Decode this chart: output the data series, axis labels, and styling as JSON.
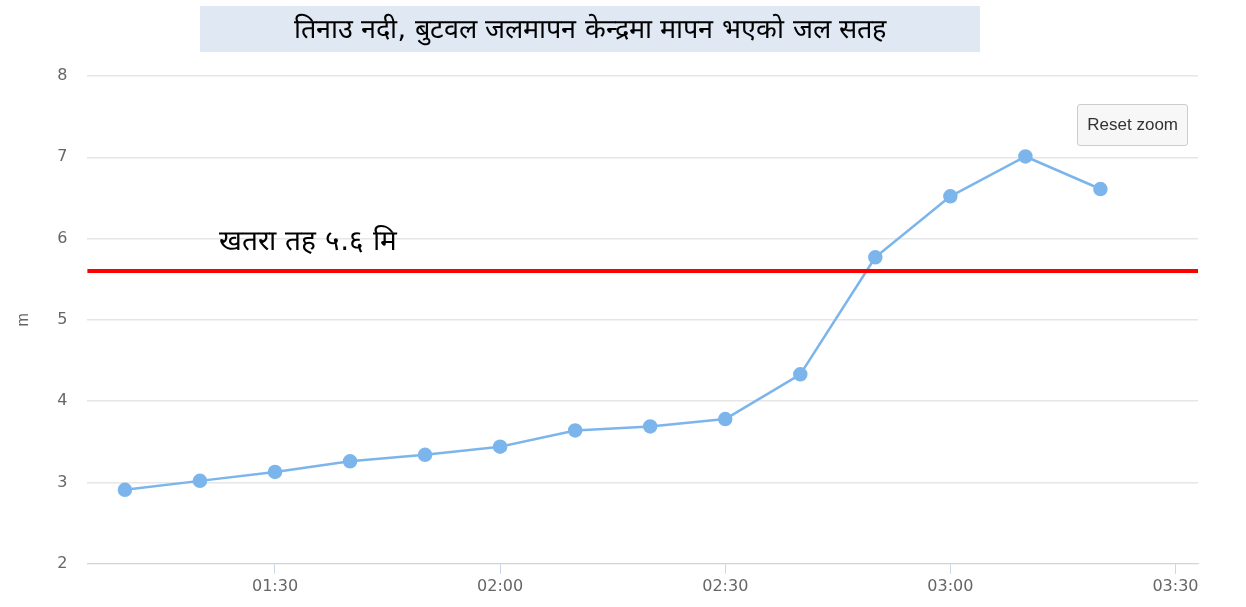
{
  "chart_data": {
    "type": "line",
    "title": "तिनाउ नदी, बुटवल जलमापन केन्द्रमा मापन भएको जल सतह",
    "ylabel": "m",
    "x": [
      1.1667,
      1.3333,
      1.5,
      1.6667,
      1.8333,
      2.0,
      2.1667,
      2.3333,
      2.5,
      2.6667,
      2.8333,
      3.0,
      3.1667,
      3.3333
    ],
    "series": [
      {
        "color": "#7cb5ec",
        "values": [
          2.91,
          3.02,
          3.13,
          3.26,
          3.34,
          3.44,
          3.64,
          3.69,
          3.78,
          4.33,
          5.77,
          6.52,
          7.01,
          6.61
        ]
      }
    ],
    "xlim": [
      1.0833,
      3.55
    ],
    "xticks": [
      {
        "value": 1.5,
        "label": "01:30"
      },
      {
        "value": 2.0,
        "label": "02:00"
      },
      {
        "value": 2.5,
        "label": "02:30"
      },
      {
        "value": 3.0,
        "label": "03:00"
      },
      {
        "value": 3.5,
        "label": "03:30"
      }
    ],
    "ylim": [
      2,
      8
    ],
    "yticks": [
      2,
      3,
      4,
      5,
      6,
      7,
      8
    ],
    "ref_lines": [
      {
        "axis": "y",
        "value": 5.6,
        "label": "खतरा तह ५.६ मि",
        "color": "#ff0000"
      }
    ],
    "annotations": [
      "Reset zoom"
    ],
    "grid": "y",
    "legend": false,
    "marker": "circle",
    "line_style": "solid"
  }
}
